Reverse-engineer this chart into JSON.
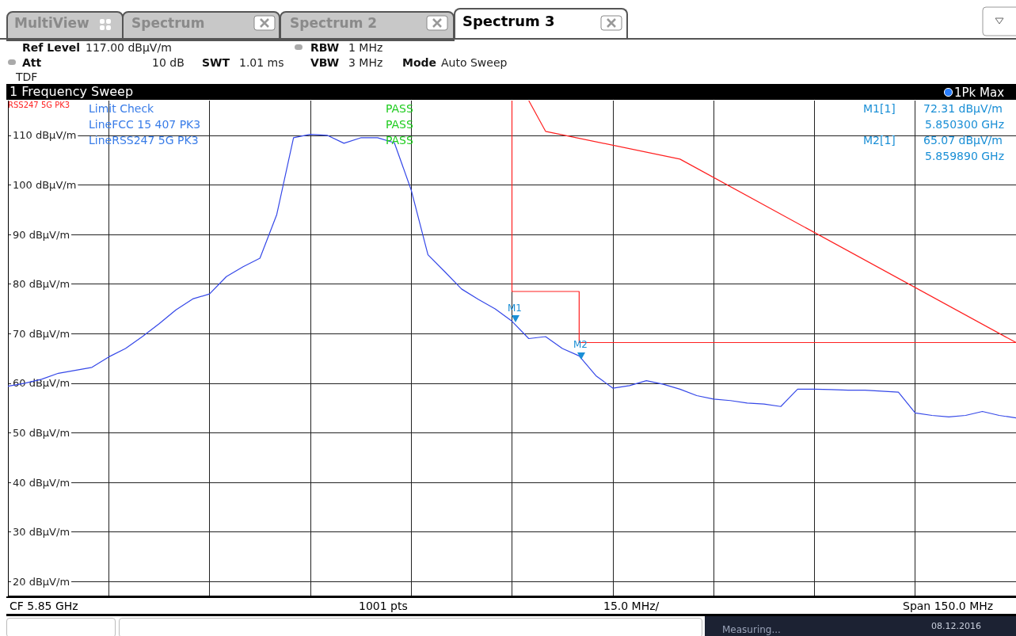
{
  "chart_data": {
    "type": "line",
    "ylim": [
      17,
      117
    ],
    "categories": [
      null,
      null,
      null,
      null,
      null,
      null,
      null,
      null,
      null,
      null,
      null,
      null,
      null,
      null,
      null,
      null,
      null,
      null,
      null,
      null,
      null,
      null,
      null,
      null,
      null,
      null,
      null,
      null,
      null,
      null,
      null,
      null,
      null,
      null,
      null,
      null,
      null,
      null,
      null,
      null,
      null,
      null,
      null,
      null,
      null,
      null,
      null,
      null,
      null,
      null,
      null,
      null,
      null,
      null,
      null,
      null,
      null,
      null,
      null,
      null,
      null
    ],
    "yticks": [
      {
        "value": 20,
        "label": "20 dBµV/m"
      },
      {
        "value": 30,
        "label": "30 dBµV/m"
      },
      {
        "value": 40,
        "label": "40 dBµV/m"
      },
      {
        "value": 50,
        "label": "50 dBµV/m"
      },
      {
        "value": 60,
        "label": "60 dBµV/m"
      },
      {
        "value": 70,
        "label": "70 dBµV/m"
      },
      {
        "value": 80,
        "label": "80 dBµV/m"
      },
      {
        "value": 90,
        "label": "90 dBµV/m"
      },
      {
        "value": 100,
        "label": "100 dBµV/m"
      },
      {
        "value": 110,
        "label": "110 dBµV/m"
      }
    ],
    "tick_labels": "y",
    "grid": true,
    "marker": "none",
    "line_style": "solid",
    "series": [
      {
        "color": "#3548e8",
        "values": [
          59.4,
          60,
          60.8,
          62,
          62.6,
          63.2,
          65.3,
          67,
          69.4,
          72,
          74.8,
          77,
          78,
          81.5,
          83.5,
          85.2,
          94,
          109.5,
          110.2,
          110,
          108.4,
          109.5,
          109.5,
          108.5,
          99,
          85.9,
          82.5,
          79,
          76.9,
          75,
          72.5,
          69,
          69.4,
          67,
          65.5,
          61.5,
          59,
          59.5,
          60.5,
          59.8,
          58.8,
          57.5,
          56.8,
          56.5,
          56,
          55.8,
          55.3,
          58.8,
          58.8,
          58.7,
          58.6,
          58.6,
          58.4,
          58.2,
          54,
          53.5,
          53.2,
          53.5,
          54.3,
          53.5,
          53
        ]
      },
      {
        "type": "step",
        "color": "#ff2020",
        "values": [
          null,
          null,
          null,
          null,
          null,
          null,
          null,
          null,
          null,
          null,
          null,
          null,
          null,
          null,
          null,
          null,
          null,
          null,
          null,
          null,
          null,
          null,
          null,
          null,
          null,
          null,
          null,
          null,
          null,
          null,
          117,
          78.5,
          78.5,
          78.5,
          78.5,
          68.2,
          68.2,
          68.2,
          68.2,
          68.2,
          68.2,
          68.2,
          68.2,
          68.2,
          68.2,
          68.2,
          68.2,
          68.2,
          68.2,
          68.2,
          68.2,
          68.2,
          68.2,
          68.2,
          68.2,
          68.2,
          68.2,
          68.2,
          68.2,
          68.2,
          68.2
        ]
      },
      {
        "color": "#ff2020",
        "values": [
          null,
          null,
          null,
          null,
          null,
          null,
          null,
          null,
          null,
          null,
          null,
          null,
          null,
          null,
          null,
          null,
          null,
          null,
          null,
          null,
          null,
          null,
          null,
          null,
          null,
          null,
          null,
          null,
          null,
          null,
          null,
          117,
          110.8,
          null,
          null,
          null,
          null,
          null,
          null,
          null,
          105.2,
          null,
          null,
          null,
          null,
          null,
          null,
          null,
          null,
          null,
          null,
          null,
          null,
          null,
          null,
          null,
          null,
          null,
          null,
          null,
          68.2
        ]
      }
    ],
    "annotations": [
      "MultiView",
      "Spectrum",
      "Spectrum 2",
      "Spectrum 3",
      "Ref Level",
      "117.00 dBµV/m",
      "Att",
      "10 dB",
      "SWT",
      "1.01 ms",
      "RBW",
      "1 MHz",
      "VBW",
      "3 MHz",
      "Mode",
      "Auto Sweep",
      "TDF",
      "1 Frequency Sweep",
      "1Pk Max",
      "Limit Check",
      "PASS",
      "LineFCC 15 407 PK3",
      "PASS",
      "LineRSS247 5G PK3",
      "PASS",
      "RSS247 5G PK3",
      "M1[1]",
      "72.31 dBµV/m",
      "5.850300 GHz",
      "M2[1]",
      "65.07 dBµV/m",
      "5.859890 GHz",
      "CF 5.85 GHz",
      "1001 pts",
      "15.0 MHz/",
      "Span 150.0 MHz",
      "Measuring...",
      "08.12.2016",
      "M1",
      "M2"
    ]
  }
}
